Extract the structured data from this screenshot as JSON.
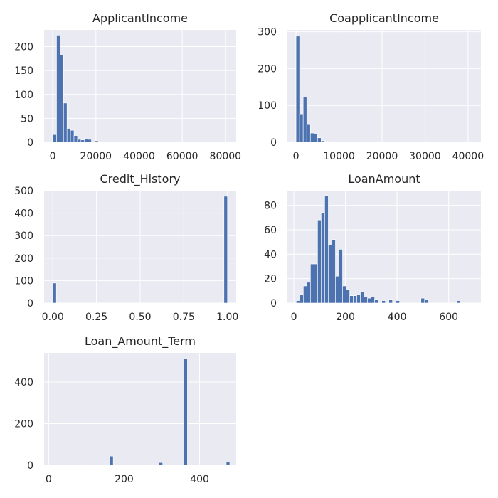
{
  "chart_data": [
    {
      "type": "bar",
      "subtype": "histogram",
      "title": "ApplicantIncome",
      "bins": 50,
      "xlim": [
        -4000,
        85000
      ],
      "ylim": [
        0,
        235
      ],
      "xticks": [
        0,
        20000,
        40000,
        60000,
        80000
      ],
      "xtick_labels": [
        "0",
        "20000",
        "40000",
        "60000",
        "80000"
      ],
      "yticks": [
        0,
        50,
        100,
        150,
        200
      ],
      "ytick_labels": [
        "0",
        "50",
        "100",
        "150",
        "200"
      ],
      "bin_edges": [
        150,
        1766,
        3382,
        4998,
        6614,
        8230,
        9846,
        11462,
        13078,
        14694,
        16310,
        17926,
        19542,
        21158,
        22774,
        24390,
        26006,
        27622,
        29238,
        30854,
        32470,
        34086,
        35702,
        37318,
        38934,
        40550,
        42166,
        43782,
        45398,
        47014,
        48630,
        50246,
        51862,
        53478,
        55094,
        56710,
        58326,
        59942,
        61558,
        63174,
        64790,
        66406,
        68022,
        69638,
        71254,
        72870,
        74486,
        76102,
        77718,
        79334,
        81000
      ],
      "counts": [
        16,
        224,
        182,
        82,
        29,
        25,
        14,
        6,
        5,
        7,
        6,
        1,
        3,
        1,
        0,
        0,
        0,
        0,
        0,
        0,
        0,
        0,
        1,
        0,
        0,
        0,
        0,
        0,
        0,
        0,
        0,
        1,
        0,
        0,
        0,
        0,
        0,
        0,
        0,
        0,
        0,
        0,
        0,
        0,
        0,
        0,
        0,
        0,
        0,
        1
      ],
      "grid": true
    },
    {
      "type": "bar",
      "subtype": "histogram",
      "title": "CoapplicantIncome",
      "bins": 50,
      "xlim": [
        -2000,
        43000
      ],
      "ylim": [
        0,
        305
      ],
      "xticks": [
        0,
        10000,
        20000,
        30000,
        40000
      ],
      "xtick_labels": [
        "0",
        "10000",
        "20000",
        "30000",
        "40000"
      ],
      "yticks": [
        0,
        100,
        200,
        300
      ],
      "ytick_labels": [
        "0",
        "100",
        "200",
        "300"
      ],
      "bin_edges": [
        0,
        834,
        1668,
        2502,
        3336,
        4170,
        5004,
        5838,
        6672,
        7506,
        8340,
        9174,
        10008,
        10842,
        11676,
        12510,
        13344,
        14178,
        15012,
        15846,
        16680,
        17514,
        18348,
        19182,
        20016,
        20850,
        21684,
        22518,
        23352,
        24186,
        25020,
        25854,
        26688,
        27522,
        28356,
        29190,
        30024,
        30858,
        31692,
        32526,
        33360,
        34194,
        35028,
        35862,
        36696,
        37530,
        38364,
        39198,
        40032,
        40866,
        41700
      ],
      "counts": [
        288,
        77,
        123,
        48,
        25,
        24,
        12,
        4,
        2,
        1,
        0,
        1,
        0,
        0,
        0,
        0,
        0,
        0,
        0,
        0,
        1,
        0,
        0,
        0,
        0,
        0,
        0,
        0,
        0,
        0,
        0,
        0,
        1,
        0,
        0,
        0,
        0,
        0,
        0,
        0,
        0,
        0,
        0,
        0,
        0,
        0,
        0,
        0,
        0,
        1
      ],
      "grid": true
    },
    {
      "type": "bar",
      "subtype": "histogram",
      "title": "Credit_History",
      "bins": 50,
      "xlim": [
        -0.05,
        1.05
      ],
      "ylim": [
        0,
        500
      ],
      "xticks": [
        0,
        0.25,
        0.5,
        0.75,
        1.0
      ],
      "xtick_labels": [
        "0.00",
        "0.25",
        "0.50",
        "0.75",
        "1.00"
      ],
      "yticks": [
        0,
        100,
        200,
        300,
        400,
        500
      ],
      "ytick_labels": [
        "0",
        "100",
        "200",
        "300",
        "400",
        "500"
      ],
      "bin_edges": [
        0,
        0.02,
        0.04,
        0.06,
        0.08,
        0.1,
        0.12,
        0.14,
        0.16,
        0.18,
        0.2,
        0.22,
        0.24,
        0.26,
        0.28,
        0.3,
        0.32,
        0.34,
        0.36,
        0.38,
        0.4,
        0.42,
        0.44,
        0.46,
        0.48,
        0.5,
        0.52,
        0.54,
        0.56,
        0.58,
        0.6,
        0.62,
        0.64,
        0.66,
        0.68,
        0.7,
        0.72,
        0.74,
        0.76,
        0.78,
        0.8,
        0.82,
        0.84,
        0.86,
        0.88,
        0.9,
        0.92,
        0.94,
        0.96,
        0.98,
        1.0
      ],
      "counts": [
        89,
        0,
        0,
        0,
        0,
        0,
        0,
        0,
        0,
        0,
        0,
        0,
        0,
        0,
        0,
        0,
        0,
        0,
        0,
        0,
        0,
        0,
        0,
        0,
        0,
        0,
        0,
        0,
        0,
        0,
        0,
        0,
        0,
        0,
        0,
        0,
        0,
        0,
        0,
        0,
        0,
        0,
        0,
        0,
        0,
        0,
        0,
        0,
        0,
        475
      ],
      "grid": true
    },
    {
      "type": "bar",
      "subtype": "histogram",
      "title": "LoanAmount",
      "bins": 50,
      "xlim": [
        -25,
        725
      ],
      "ylim": [
        0,
        92
      ],
      "xticks": [
        0,
        200,
        400,
        600
      ],
      "xtick_labels": [
        "0",
        "200",
        "400",
        "600"
      ],
      "yticks": [
        0,
        20,
        40,
        60,
        80
      ],
      "ytick_labels": [
        "0",
        "20",
        "40",
        "60",
        "80"
      ],
      "bin_edges": [
        9,
        22.82,
        36.64,
        50.46,
        64.28,
        78.1,
        91.92,
        105.74,
        119.56,
        133.38,
        147.2,
        161.02,
        174.84,
        188.66,
        202.48,
        216.3,
        230.12,
        243.94,
        257.76,
        271.58,
        285.4,
        299.22,
        313.04,
        326.86,
        340.68,
        354.5,
        368.32,
        382.14,
        395.96,
        409.78,
        423.6,
        437.42,
        451.24,
        465.06,
        478.88,
        492.7,
        506.52,
        520.34,
        534.16,
        547.98,
        561.8,
        575.62,
        589.44,
        603.26,
        617.08,
        630.9,
        644.72,
        658.54,
        672.36,
        686.18,
        700
      ],
      "counts": [
        2,
        7,
        14,
        17,
        32,
        32,
        68,
        74,
        88,
        48,
        52,
        22,
        44,
        14,
        11,
        6,
        6,
        7,
        9,
        5,
        4,
        5,
        3,
        0,
        2,
        0,
        3,
        0,
        2,
        0,
        0,
        0,
        0,
        0,
        0,
        4,
        3,
        0,
        0,
        0,
        0,
        0,
        0,
        0,
        0,
        2,
        0,
        0,
        0,
        0
      ],
      "grid": true
    },
    {
      "type": "bar",
      "subtype": "histogram",
      "title": "Loan_Amount_Term",
      "bins": 50,
      "xlim": [
        -12,
        497
      ],
      "ylim": [
        0,
        540
      ],
      "xticks": [
        0,
        200,
        400
      ],
      "xtick_labels": [
        "0",
        "200",
        "400"
      ],
      "yticks": [
        0,
        200,
        400
      ],
      "ytick_labels": [
        "0",
        "200",
        "400"
      ],
      "bin_edges": [
        12,
        21.36,
        30.72,
        40.08,
        49.44,
        58.8,
        68.16,
        77.52,
        86.88,
        96.24,
        105.6,
        114.96,
        124.32,
        133.68,
        143.04,
        152.4,
        161.76,
        171.12,
        180.48,
        189.84,
        199.2,
        208.56,
        217.92,
        227.28,
        236.64,
        246,
        255.36,
        264.72,
        274.08,
        283.44,
        292.8,
        302.16,
        311.52,
        320.88,
        330.24,
        339.6,
        348.96,
        358.32,
        367.68,
        377.04,
        386.4,
        395.76,
        405.12,
        414.48,
        423.84,
        433.2,
        442.56,
        451.92,
        461.28,
        470.64,
        480
      ],
      "counts": [
        1,
        0,
        2,
        0,
        0,
        0,
        1,
        0,
        3,
        0,
        0,
        0,
        0,
        0,
        0,
        0,
        44,
        0,
        0,
        0,
        0,
        0,
        0,
        0,
        0,
        0,
        0,
        0,
        0,
        0,
        13,
        0,
        0,
        0,
        0,
        0,
        0,
        512,
        0,
        0,
        0,
        0,
        0,
        0,
        0,
        0,
        0,
        0,
        0,
        15
      ],
      "grid": true
    }
  ]
}
